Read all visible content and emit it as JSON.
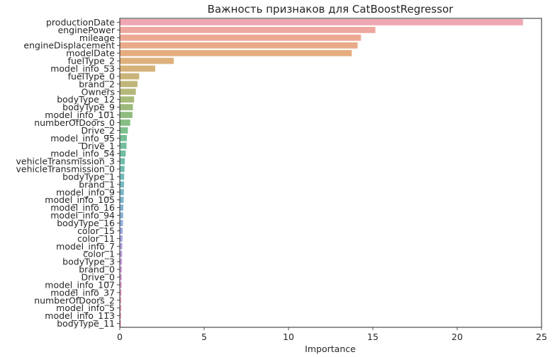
{
  "chart_data": {
    "type": "bar",
    "orientation": "horizontal",
    "title": "Важность признаков для CatBoostRegressor",
    "xlabel": "Importance",
    "ylabel": "",
    "xlim": [
      0,
      25
    ],
    "xticks": [
      0,
      5,
      10,
      15,
      20,
      25
    ],
    "grid": false,
    "categories": [
      "productionDate",
      "enginePower",
      "mileage",
      "engineDisplacement",
      "modelDate",
      "fuelType_2",
      "model_info_53",
      "fuelType_0",
      "brand_2",
      "Owners",
      "bodyType_12",
      "bodyType_9",
      "model_info_101",
      "numberOfDoors_0",
      "Drive_2",
      "model_info_95",
      "Drive_1",
      "model_info_54",
      "vehicleTransmission_3",
      "vehicleTransmission_0",
      "bodyType_1",
      "brand_1",
      "model_info_9",
      "model_info_105",
      "model_info_16",
      "model_info_94",
      "bodyType_16",
      "color_15",
      "color_11",
      "model_info_7",
      "color_1",
      "bodyType_3",
      "brand_0",
      "Drive_0",
      "model_info_107",
      "model_info_37",
      "numberOfDoors_2",
      "model_info_5",
      "model_info_113",
      "bodyType_11"
    ],
    "values": [
      23.9,
      15.15,
      14.3,
      14.1,
      13.75,
      3.2,
      2.1,
      1.15,
      1.05,
      0.95,
      0.85,
      0.78,
      0.75,
      0.62,
      0.48,
      0.42,
      0.4,
      0.35,
      0.3,
      0.28,
      0.26,
      0.25,
      0.24,
      0.23,
      0.21,
      0.2,
      0.19,
      0.17,
      0.16,
      0.15,
      0.14,
      0.13,
      0.12,
      0.11,
      0.11,
      0.1,
      0.09,
      0.09,
      0.08,
      0.07
    ],
    "colors": [
      "#f0a7b2",
      "#eea8a0",
      "#eca994",
      "#e8ab89",
      "#e5ad7e",
      "#deb07c",
      "#d5b27a",
      "#cbb47a",
      "#c0b67a",
      "#b4b87a",
      "#a7ba7a",
      "#9cbb7b",
      "#90bd7f",
      "#86be85",
      "#7cbe8c",
      "#76be94",
      "#72bd9c",
      "#70bda4",
      "#70bcab",
      "#70bbb2",
      "#71bab9",
      "#74b9c0",
      "#77b7c7",
      "#7cb6cd",
      "#83b3d3",
      "#8ab1d8",
      "#93aedd",
      "#9daae0",
      "#a8a6e2",
      "#b3a3e2",
      "#bca0e0",
      "#c59edd",
      "#cd9cd9",
      "#d49cd4",
      "#dba0cf",
      "#e0a2c9",
      "#e5a5c3",
      "#e8a6bd",
      "#eba7b8",
      "#ee9ebd"
    ]
  }
}
